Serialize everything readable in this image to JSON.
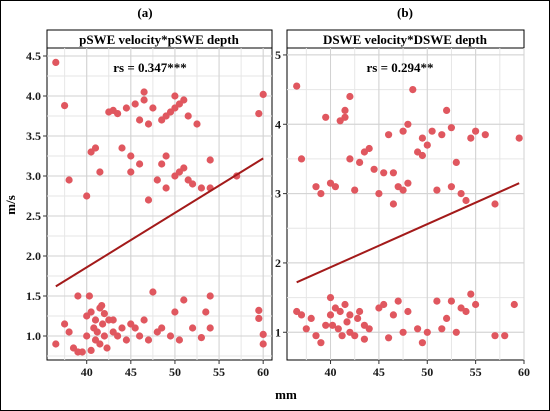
{
  "chart_data": [
    {
      "type": "scatter",
      "panel_label": "(a)",
      "title": "pSWE velocity*pSWE depth",
      "annotation": "rs = 0.347***",
      "xlabel": "mm",
      "ylabel": "m/s",
      "xlim": [
        35.5,
        61
      ],
      "ylim": [
        0.7,
        4.6
      ],
      "xticks": [
        40,
        45,
        50,
        55,
        60
      ],
      "xtick_labels": [
        "40",
        "45",
        "50",
        "55",
        "60"
      ],
      "yticks": [
        1.0,
        1.5,
        2.0,
        2.5,
        3.0,
        3.5,
        4.0,
        4.5
      ],
      "ytick_labels": [
        "1.0",
        "1.5",
        "2.0",
        "2.5",
        "3.0",
        "3.5",
        "4.0",
        "4.5"
      ],
      "grid": true,
      "point_color": "#e0575f",
      "line_color": "#a31a1a",
      "fit_line": {
        "x": [
          36.5,
          60
        ],
        "y": [
          1.62,
          3.22
        ]
      },
      "points": [
        [
          36.5,
          4.42
        ],
        [
          37.5,
          3.88
        ],
        [
          38,
          2.95
        ],
        [
          40,
          2.75
        ],
        [
          40.5,
          3.3
        ],
        [
          41,
          3.35
        ],
        [
          41.5,
          3.05
        ],
        [
          42.5,
          3.8
        ],
        [
          43,
          3.82
        ],
        [
          43.5,
          3.78
        ],
        [
          44,
          3.35
        ],
        [
          44.5,
          3.85
        ],
        [
          45,
          3.05
        ],
        [
          45.5,
          3.9
        ],
        [
          46,
          3.7
        ],
        [
          46.5,
          4.05
        ],
        [
          47,
          3.65
        ],
        [
          47,
          2.7
        ],
        [
          46.5,
          3.95
        ],
        [
          47.5,
          3.85
        ],
        [
          48,
          2.95
        ],
        [
          48.5,
          3.15
        ],
        [
          49,
          3.75
        ],
        [
          49.5,
          3.8
        ],
        [
          50,
          3.85
        ],
        [
          50,
          4.0
        ],
        [
          50.5,
          3.9
        ],
        [
          49,
          3.25
        ],
        [
          50,
          3.0
        ],
        [
          50.5,
          3.05
        ],
        [
          51,
          3.1
        ],
        [
          51,
          3.95
        ],
        [
          51.5,
          2.95
        ],
        [
          52,
          2.9
        ],
        [
          52.5,
          3.65
        ],
        [
          53,
          2.85
        ],
        [
          54,
          3.2
        ],
        [
          54,
          2.85
        ],
        [
          57,
          3.0
        ],
        [
          59.5,
          3.78
        ],
        [
          60,
          4.02
        ],
        [
          48.5,
          3.7
        ],
        [
          46,
          3.15
        ],
        [
          45,
          3.25
        ],
        [
          51.5,
          3.75
        ],
        [
          49,
          2.85
        ],
        [
          36.5,
          0.9
        ],
        [
          37.5,
          1.15
        ],
        [
          38,
          1.05
        ],
        [
          38.5,
          0.85
        ],
        [
          39,
          0.8
        ],
        [
          39.5,
          0.8
        ],
        [
          40,
          1.0
        ],
        [
          40,
          1.25
        ],
        [
          40.5,
          0.82
        ],
        [
          40.5,
          1.3
        ],
        [
          40.8,
          1.1
        ],
        [
          41,
          0.95
        ],
        [
          41,
          1.2
        ],
        [
          41.2,
          1.05
        ],
        [
          41.5,
          1.35
        ],
        [
          41.5,
          0.9
        ],
        [
          41.8,
          1.15
        ],
        [
          42,
          1.0
        ],
        [
          42,
          1.28
        ],
        [
          42.3,
          0.85
        ],
        [
          42.5,
          1.2
        ],
        [
          43,
          1.05
        ],
        [
          43.5,
          1.0
        ],
        [
          44,
          1.1
        ],
        [
          44.5,
          0.95
        ],
        [
          45,
          1.15
        ],
        [
          45.5,
          1.1
        ],
        [
          46,
          1.0
        ],
        [
          46.5,
          1.2
        ],
        [
          47,
          0.95
        ],
        [
          47.5,
          1.55
        ],
        [
          48,
          1.05
        ],
        [
          48.5,
          1.1
        ],
        [
          49.5,
          1.0
        ],
        [
          50,
          1.3
        ],
        [
          50.5,
          0.95
        ],
        [
          51,
          1.45
        ],
        [
          52,
          1.1
        ],
        [
          53,
          0.98
        ],
        [
          53.5,
          1.3
        ],
        [
          54,
          1.5
        ],
        [
          54,
          1.1
        ],
        [
          59.5,
          1.32
        ],
        [
          59.5,
          1.22
        ],
        [
          60,
          0.9
        ],
        [
          60,
          1.02
        ],
        [
          39,
          1.5
        ],
        [
          41.7,
          1.38
        ],
        [
          40.3,
          1.5
        ],
        [
          43,
          1.2
        ]
      ]
    },
    {
      "type": "scatter",
      "panel_label": "(b)",
      "title": "DSWE velocity*DSWE depth",
      "annotation": "rs = 0.294**",
      "xlabel": "mm",
      "ylabel": "",
      "xlim": [
        35.5,
        60
      ],
      "ylim": [
        0.6,
        5.1
      ],
      "xticks": [
        40,
        45,
        50,
        55,
        60
      ],
      "xtick_labels": [
        "40",
        "45",
        "50",
        "55",
        "60"
      ],
      "yticks": [
        1,
        2,
        3,
        4,
        5
      ],
      "ytick_labels": [
        "1",
        "2",
        "3",
        "4",
        "5"
      ],
      "grid": true,
      "point_color": "#e0575f",
      "line_color": "#a31a1a",
      "fit_line": {
        "x": [
          36.5,
          59.5
        ],
        "y": [
          1.72,
          3.15
        ]
      },
      "points": [
        [
          36.5,
          4.55
        ],
        [
          37,
          3.5
        ],
        [
          38.5,
          3.1
        ],
        [
          39,
          3.0
        ],
        [
          39.5,
          4.1
        ],
        [
          40,
          3.15
        ],
        [
          40.5,
          3.1
        ],
        [
          41,
          4.05
        ],
        [
          41.5,
          4.2
        ],
        [
          42,
          4.4
        ],
        [
          42,
          3.5
        ],
        [
          42.5,
          3.05
        ],
        [
          43,
          3.45
        ],
        [
          43.5,
          3.6
        ],
        [
          44,
          3.65
        ],
        [
          45,
          3.0
        ],
        [
          45.5,
          3.3
        ],
        [
          46,
          3.85
        ],
        [
          46.5,
          2.85
        ],
        [
          47,
          3.1
        ],
        [
          47.5,
          3.9
        ],
        [
          48,
          4.0
        ],
        [
          48,
          3.15
        ],
        [
          48.5,
          4.5
        ],
        [
          49,
          3.6
        ],
        [
          49.5,
          3.8
        ],
        [
          50,
          3.7
        ],
        [
          50.5,
          3.9
        ],
        [
          51,
          3.05
        ],
        [
          51.5,
          3.85
        ],
        [
          52,
          4.2
        ],
        [
          52.5,
          3.95
        ],
        [
          53,
          3.45
        ],
        [
          53.5,
          3.0
        ],
        [
          54,
          2.9
        ],
        [
          54.5,
          3.8
        ],
        [
          55,
          3.9
        ],
        [
          56,
          3.85
        ],
        [
          57,
          2.85
        ],
        [
          59.5,
          3.8
        ],
        [
          46.5,
          3.3
        ],
        [
          47.5,
          3.05
        ],
        [
          44.5,
          3.35
        ],
        [
          41.5,
          4.1
        ],
        [
          52.5,
          3.1
        ],
        [
          49.5,
          3.55
        ],
        [
          36.5,
          1.3
        ],
        [
          37,
          1.25
        ],
        [
          37.5,
          1.05
        ],
        [
          38,
          1.2
        ],
        [
          38.5,
          0.95
        ],
        [
          39,
          0.85
        ],
        [
          39.5,
          1.1
        ],
        [
          40,
          1.5
        ],
        [
          40,
          1.25
        ],
        [
          40.5,
          1.35
        ],
        [
          40.8,
          1.05
        ],
        [
          41,
          1.3
        ],
        [
          41.2,
          0.95
        ],
        [
          41.5,
          1.4
        ],
        [
          41.7,
          1.15
        ],
        [
          42,
          1.25
        ],
        [
          42,
          1.0
        ],
        [
          42.5,
          0.95
        ],
        [
          43,
          1.3
        ],
        [
          43.5,
          1.1
        ],
        [
          44,
          1.05
        ],
        [
          45,
          1.35
        ],
        [
          45.5,
          1.4
        ],
        [
          46,
          0.92
        ],
        [
          46.5,
          1.25
        ],
        [
          47,
          1.45
        ],
        [
          47.5,
          1.0
        ],
        [
          48,
          1.3
        ],
        [
          49,
          1.05
        ],
        [
          49.5,
          0.85
        ],
        [
          50,
          1.0
        ],
        [
          51,
          1.45
        ],
        [
          51.5,
          1.05
        ],
        [
          52,
          1.2
        ],
        [
          52.5,
          1.45
        ],
        [
          53,
          1.0
        ],
        [
          53.5,
          1.35
        ],
        [
          54,
          1.3
        ],
        [
          54.5,
          1.55
        ],
        [
          55,
          1.4
        ],
        [
          57,
          0.95
        ],
        [
          58,
          0.95
        ],
        [
          59,
          1.4
        ],
        [
          43.5,
          0.9
        ],
        [
          42.8,
          1.2
        ],
        [
          40.2,
          1.1
        ]
      ]
    }
  ]
}
